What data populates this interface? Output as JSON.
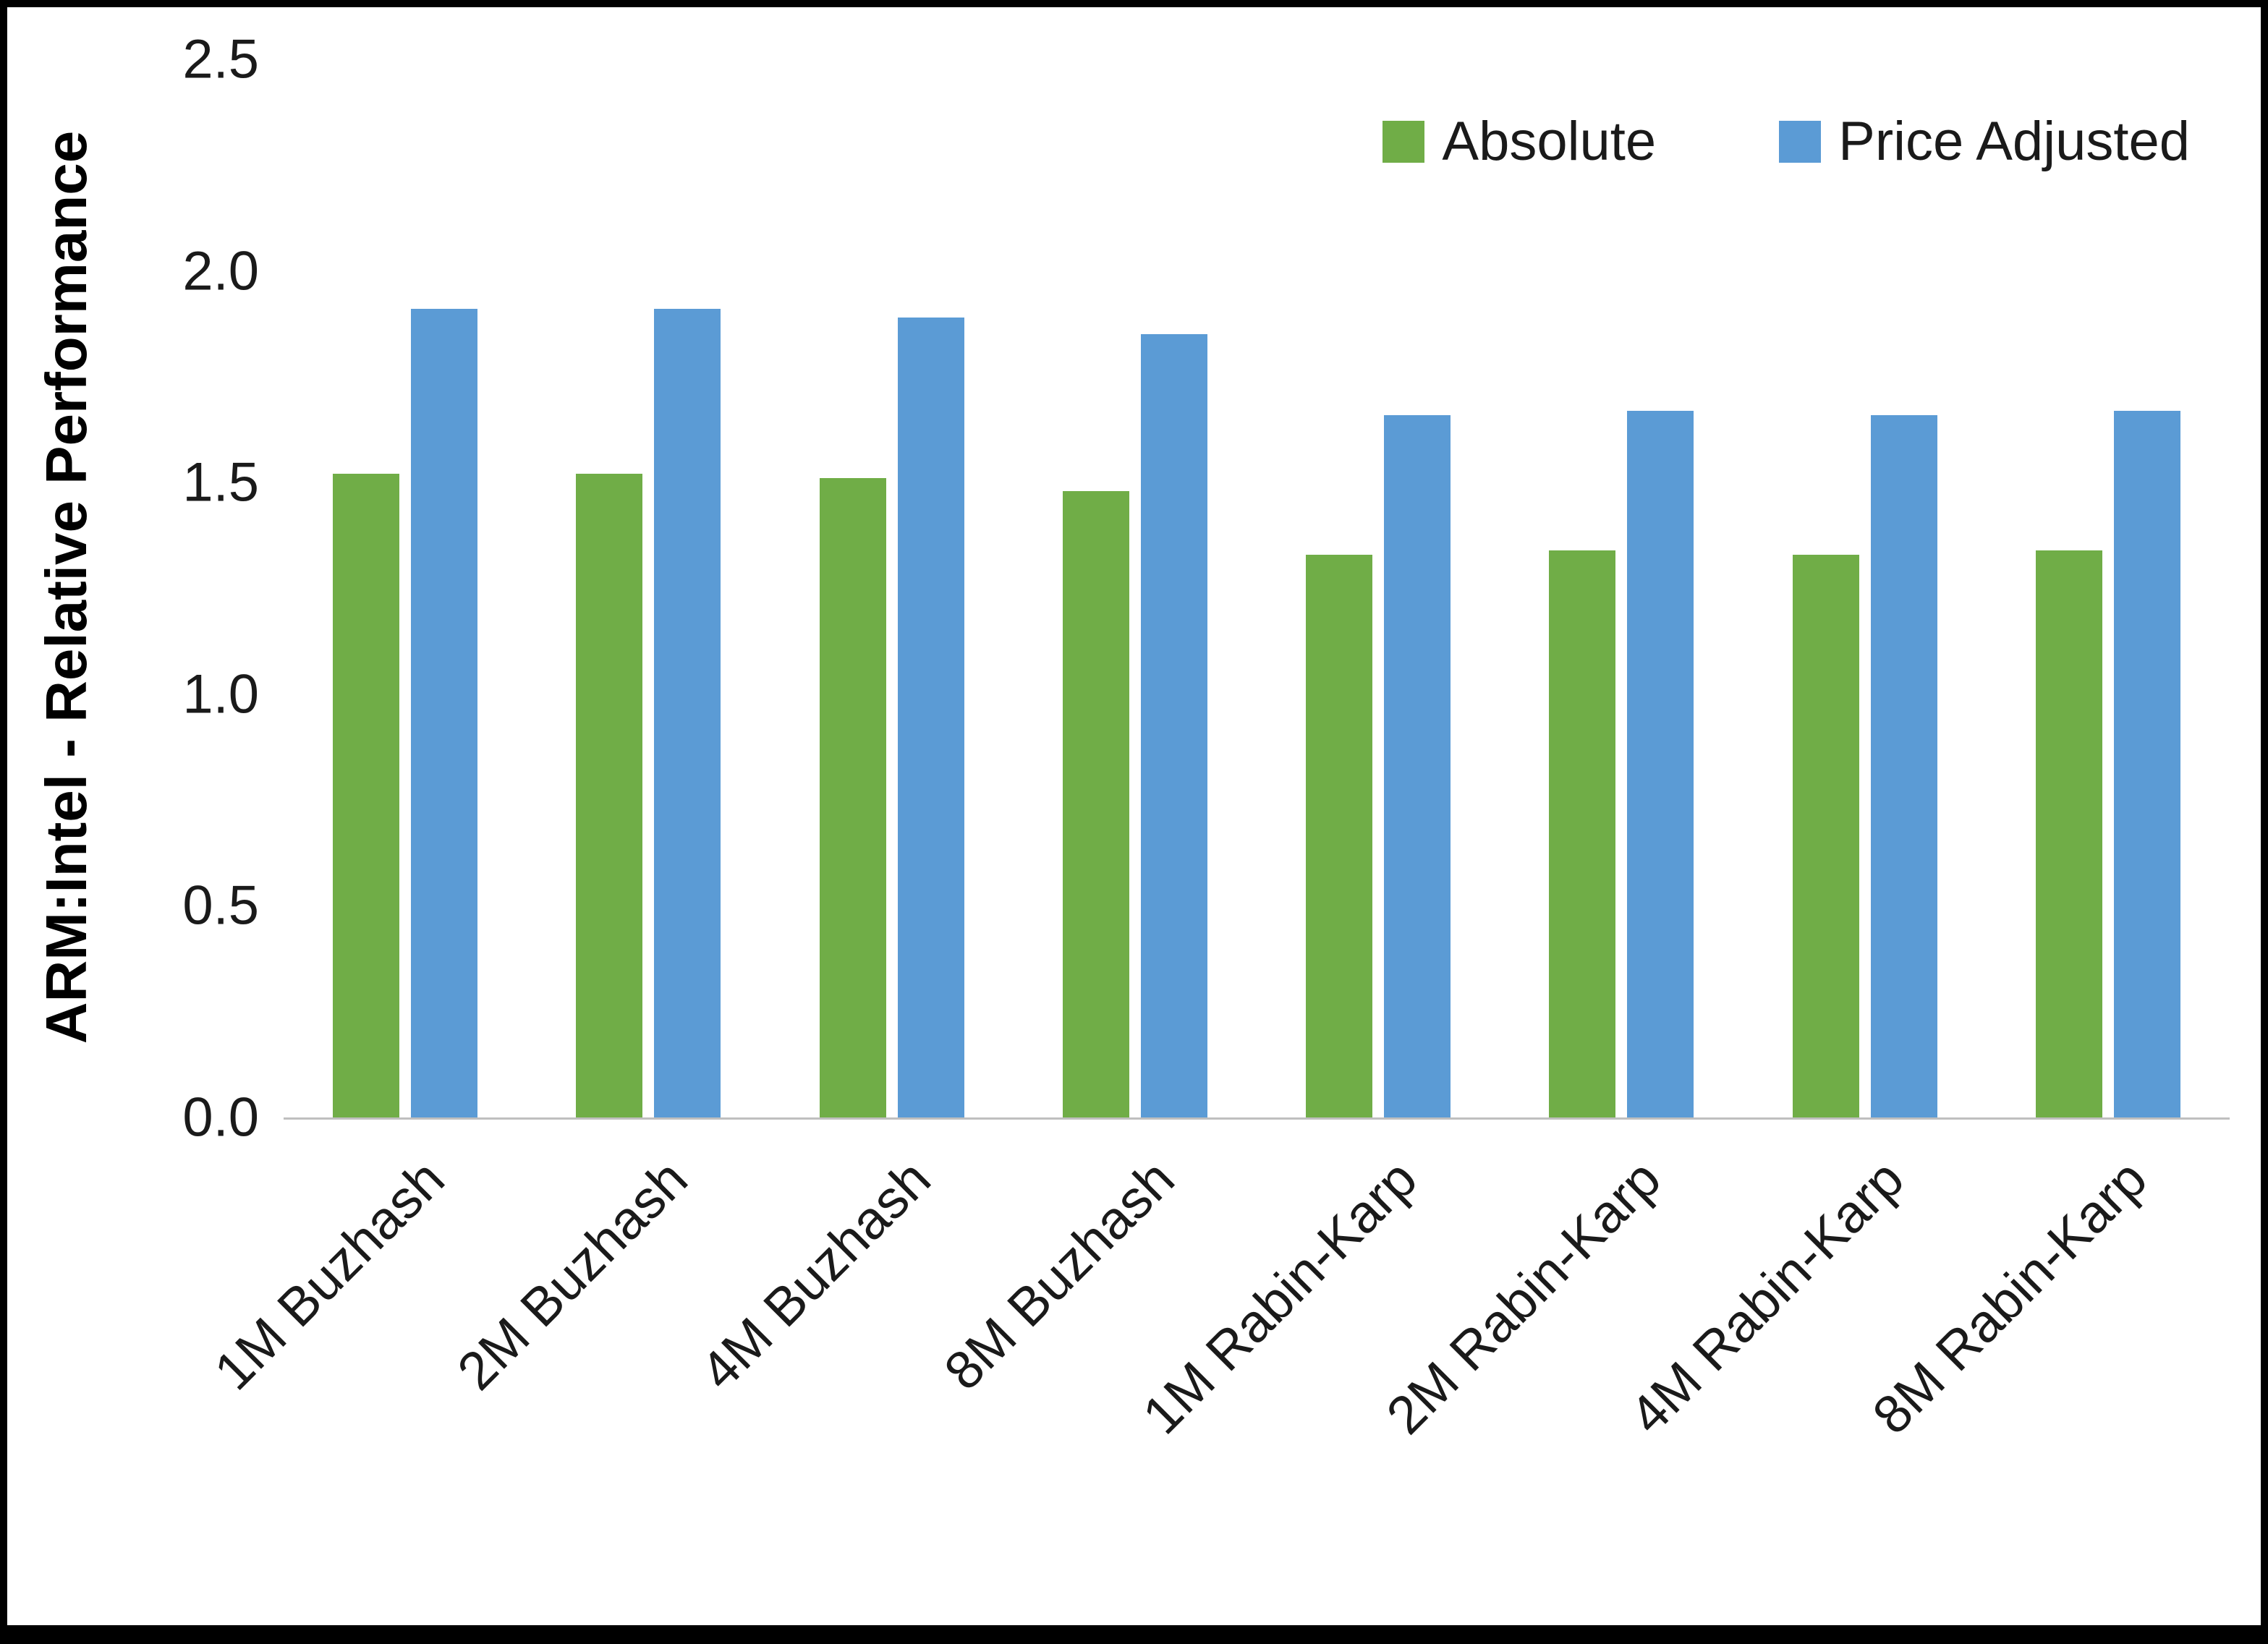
{
  "chart_data": {
    "type": "bar",
    "title": "",
    "categories": [
      "1M Buzhash",
      "2M Buzhash",
      "4M Buzhash",
      "8M Buzhash",
      "1M Rabin-Karp",
      "2M Rabin-Karp",
      "4M Rabin-Karp",
      "8M Rabin-Karp"
    ],
    "series": [
      {
        "name": "Absolute",
        "color": "#70AD47",
        "values": [
          1.52,
          1.52,
          1.51,
          1.48,
          1.33,
          1.34,
          1.33,
          1.34
        ]
      },
      {
        "name": "Price Adjusted",
        "color": "#5B9BD5",
        "values": [
          1.91,
          1.91,
          1.89,
          1.85,
          1.66,
          1.67,
          1.66,
          1.67
        ]
      }
    ],
    "xlabel": "",
    "ylabel": "ARM:Intel - Relative Performance",
    "ylim": [
      0.0,
      2.5
    ],
    "yticks": [
      "0.0",
      "0.5",
      "1.0",
      "1.5",
      "2.0",
      "2.5"
    ],
    "grid": false,
    "legend_position": "top-right",
    "axis_line_color": "#bfbfbf"
  }
}
